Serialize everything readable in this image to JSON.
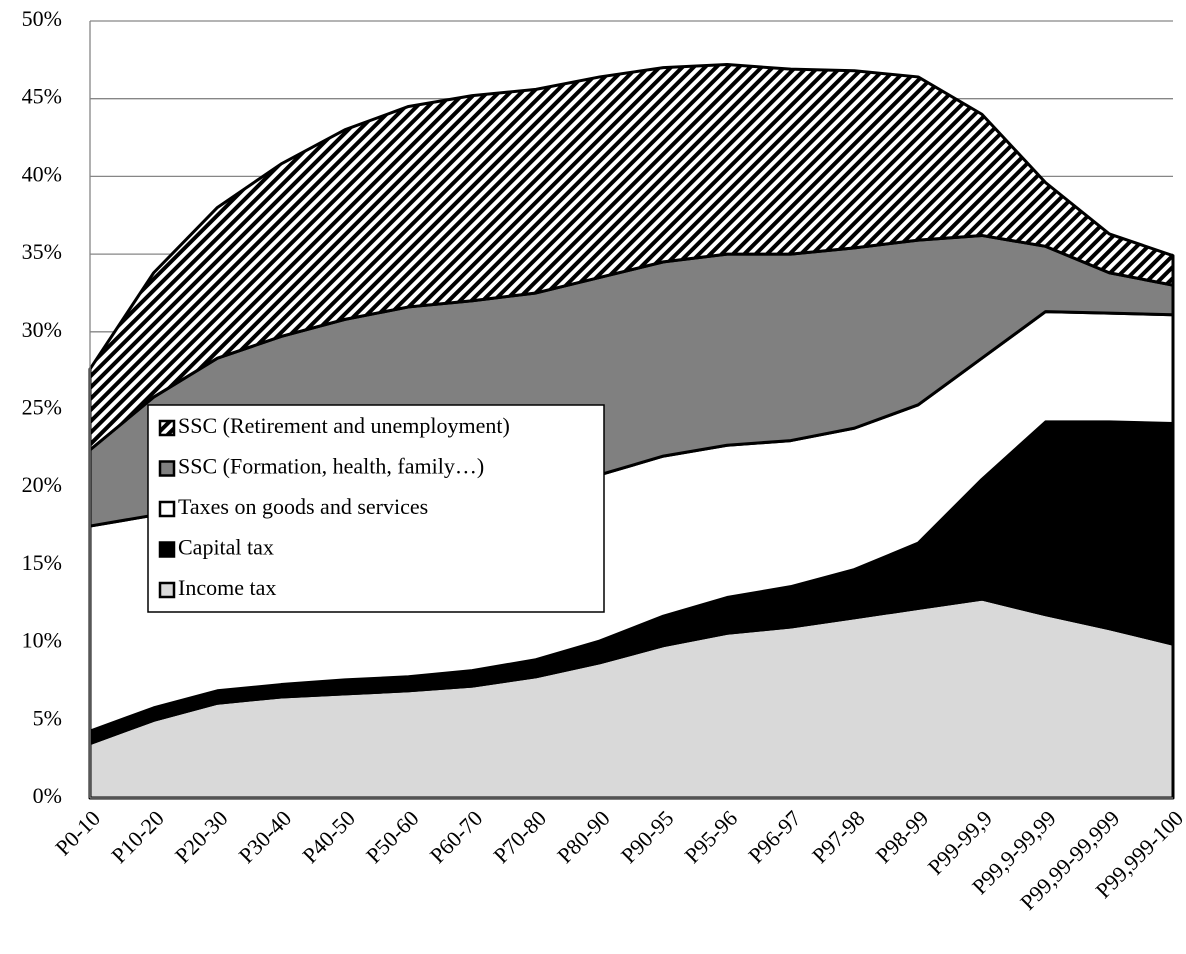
{
  "chart_data": {
    "type": "stacked-area",
    "categories": [
      "P0-10",
      "P10-20",
      "P20-30",
      "P30-40",
      "P40-50",
      "P50-60",
      "P60-70",
      "P70-80",
      "P80-90",
      "P90-95",
      "P95-96",
      "P96-97",
      "P97-98",
      "P98-99",
      "P99-99,9",
      "P99,9-99,99",
      "P99,99-99,999",
      "P99,999-100"
    ],
    "series": [
      {
        "name": "Income tax",
        "color": "#d9d9d9",
        "values": [
          3.5,
          5.0,
          6.1,
          6.5,
          6.7,
          6.9,
          7.2,
          7.8,
          8.7,
          9.8,
          10.6,
          11.0,
          11.6,
          12.2,
          12.8,
          11.8,
          10.9,
          9.9
        ]
      },
      {
        "name": "Capital tax",
        "color": "#000000",
        "values": [
          0.8,
          0.8,
          0.8,
          0.8,
          0.9,
          0.9,
          1.0,
          1.1,
          1.4,
          1.9,
          2.3,
          2.6,
          3.1,
          4.2,
          7.7,
          12.4,
          13.3,
          14.2
        ]
      },
      {
        "name": "Taxes on goods and services",
        "color": "#ffffff",
        "values": [
          13.2,
          12.4,
          11.9,
          12.0,
          12.1,
          12.2,
          12.0,
          11.5,
          10.7,
          10.3,
          9.8,
          9.4,
          9.1,
          8.9,
          7.8,
          7.1,
          7.0,
          7.0
        ]
      },
      {
        "name": "SSC (Formation, health, family…)",
        "color": "#808080",
        "values": [
          4.9,
          7.6,
          9.5,
          10.4,
          11.1,
          11.6,
          11.8,
          12.1,
          12.7,
          12.5,
          12.3,
          12.0,
          11.6,
          10.6,
          7.9,
          4.2,
          2.6,
          1.9
        ]
      },
      {
        "name": "SSC (Retirement and unemployment)",
        "color": "#000000",
        "pattern": "hatch",
        "values": [
          5.2,
          8.0,
          9.7,
          11.1,
          12.2,
          12.9,
          13.2,
          13.1,
          12.9,
          12.5,
          12.2,
          11.9,
          11.4,
          10.5,
          7.8,
          4.1,
          2.5,
          1.9
        ]
      }
    ],
    "ylim": [
      0,
      50
    ],
    "yticks": [
      {
        "value": 0,
        "label": "0%"
      },
      {
        "value": 5,
        "label": "5%"
      },
      {
        "value": 10,
        "label": "10%"
      },
      {
        "value": 15,
        "label": "15%"
      },
      {
        "value": 20,
        "label": "20%"
      },
      {
        "value": 25,
        "label": "25%"
      },
      {
        "value": 30,
        "label": "30%"
      },
      {
        "value": 35,
        "label": "35%"
      },
      {
        "value": 40,
        "label": "40%"
      },
      {
        "value": 45,
        "label": "45%"
      },
      {
        "value": 50,
        "label": "50%"
      }
    ],
    "grid": true,
    "legend": "center-left"
  }
}
